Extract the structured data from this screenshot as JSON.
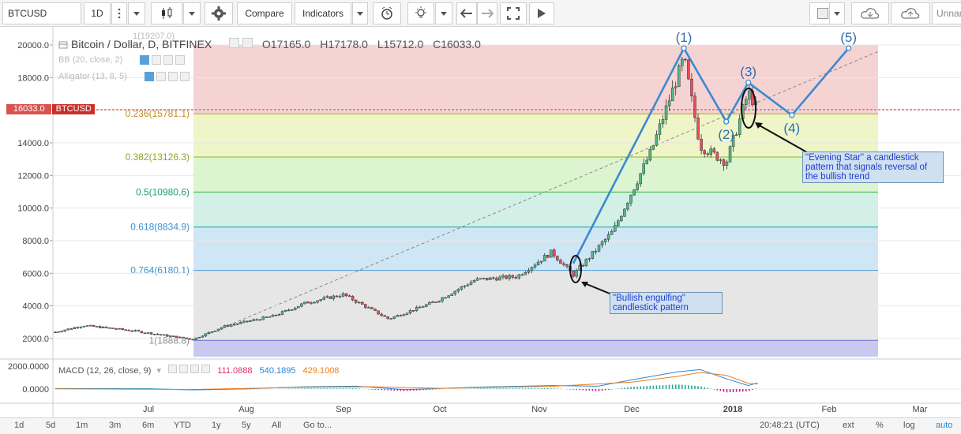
{
  "toolbar": {
    "symbol": "BTCUSD",
    "interval": "1D",
    "compare_label": "Compare",
    "indicators_label": "Indicators",
    "layout_name": "Unnam"
  },
  "legend": {
    "title": "Bitcoin / Dollar, D, BITFINEX",
    "open": "O17165.0",
    "high": "H17178.0",
    "low": "L15712.0",
    "close": "C16033.0",
    "bb": "BB (20, close, 2)",
    "alligator": "Alligator (13, 8, 5)",
    "ghost_value": "1(19207.0)"
  },
  "price_tag": {
    "value": "16033.0",
    "symbol": "BTCUSD",
    "color": "#d9534f"
  },
  "fib_labels": [
    "0.236(15781.1)",
    "0.382(13126.3)",
    "0.5(10980.6)",
    "0.618(8834.9)",
    "0.764(6180.1)",
    "1(1888.8)"
  ],
  "waves": [
    "(1)",
    "(2)",
    "(3)",
    "(4)",
    "(5)"
  ],
  "annotations": {
    "bullish": "\"Bullish engulfing\" candlestick pattern",
    "evening": "\"Evening Star\" a candlestick pattern that signals reversal of the bullish trend"
  },
  "macd": {
    "label": "MACD (12, 26, close, 9)",
    "hist": "111.0888",
    "macd": "540.1895",
    "signal": "429.1008",
    "y_ticks": [
      "2000.0000",
      "0.0000"
    ]
  },
  "bottom": {
    "ranges": [
      "1d",
      "5d",
      "1m",
      "3m",
      "6m",
      "YTD",
      "1y",
      "5y",
      "All"
    ],
    "goto": "Go to...",
    "clock": "20:48:21 (UTC)",
    "ext": "ext",
    "pct": "%",
    "log": "log",
    "auto": "auto"
  },
  "chart_data": {
    "type": "candlestick",
    "title": "Bitcoin / Dollar, D, BITFINEX",
    "ylim": [
      1500,
      20500
    ],
    "y_ticks": [
      2000,
      4000,
      6000,
      8000,
      10000,
      12000,
      14000,
      16000,
      18000,
      20000
    ],
    "y_tick_labels": [
      "2000.0",
      "4000.0",
      "6000.0",
      "8000.0",
      "10000.0",
      "12000.0",
      "14000.0",
      "16000.0",
      "18000.0",
      "20000.0"
    ],
    "x_labels": [
      "Jul",
      "Aug",
      "Sep",
      "Oct",
      "Nov",
      "Dec",
      "2018",
      "Feb",
      "Mar"
    ],
    "fib_levels": [
      {
        "ratio": "1",
        "price": 1888.8,
        "fill": "#c9c9f0"
      },
      {
        "ratio": "0.764",
        "price": 6180.1,
        "fill": "#e6e6e6"
      },
      {
        "ratio": "0.618",
        "price": 8834.9,
        "fill": "#cfe6f5"
      },
      {
        "ratio": "0.5",
        "price": 10980.6,
        "fill": "#d2f0e6"
      },
      {
        "ratio": "0.382",
        "price": 13126.3,
        "fill": "#dcf5d0"
      },
      {
        "ratio": "0.236",
        "price": 15781.1,
        "fill": "#eef5c8"
      },
      {
        "ratio": "0",
        "price": 20000,
        "fill": "#f5d3d3"
      }
    ],
    "price_path": [
      [
        "Jun 01",
        2400
      ],
      [
        "Jun 10",
        2800
      ],
      [
        "Jun 25",
        2500
      ],
      [
        "Jul 15",
        1950
      ],
      [
        "Jul 25",
        2750
      ],
      [
        "Aug 10",
        3400
      ],
      [
        "Aug 20",
        4200
      ],
      [
        "Sep 01",
        4700
      ],
      [
        "Sep 15",
        3200
      ],
      [
        "Sep 30",
        4300
      ],
      [
        "Oct 12",
        5600
      ],
      [
        "Oct 25",
        5800
      ],
      [
        "Nov 05",
        7300
      ],
      [
        "Nov 12",
        5900
      ],
      [
        "Nov 25",
        8600
      ],
      [
        "Dec 07",
        13500
      ],
      [
        "Dec 17",
        19200
      ],
      [
        "Dec 22",
        13800
      ],
      [
        "Dec 30",
        12800
      ],
      [
        "Jan 06",
        17100
      ],
      [
        "Jan 09",
        16033
      ]
    ],
    "waves": [
      {
        "label": "(1)",
        "date": "Dec 17",
        "price": 19800
      },
      {
        "label": "(2)",
        "date": "Dec 30",
        "price": 15300
      },
      {
        "label": "(3)",
        "date": "Jan 06",
        "price": 17700
      },
      {
        "label": "(4)",
        "date": "Jan 20",
        "price": 15700
      },
      {
        "label": "(5)",
        "date": "Feb 07",
        "price": 19800
      }
    ],
    "last_price": 16033.0,
    "macd": {
      "macd": 540.1895,
      "signal": 429.1008,
      "hist": 111.0888,
      "ylim": [
        -500,
        2000
      ]
    },
    "colors": {
      "up": "#53b987",
      "down": "#eb4d5c",
      "wave": "#3a8ad2"
    }
  }
}
